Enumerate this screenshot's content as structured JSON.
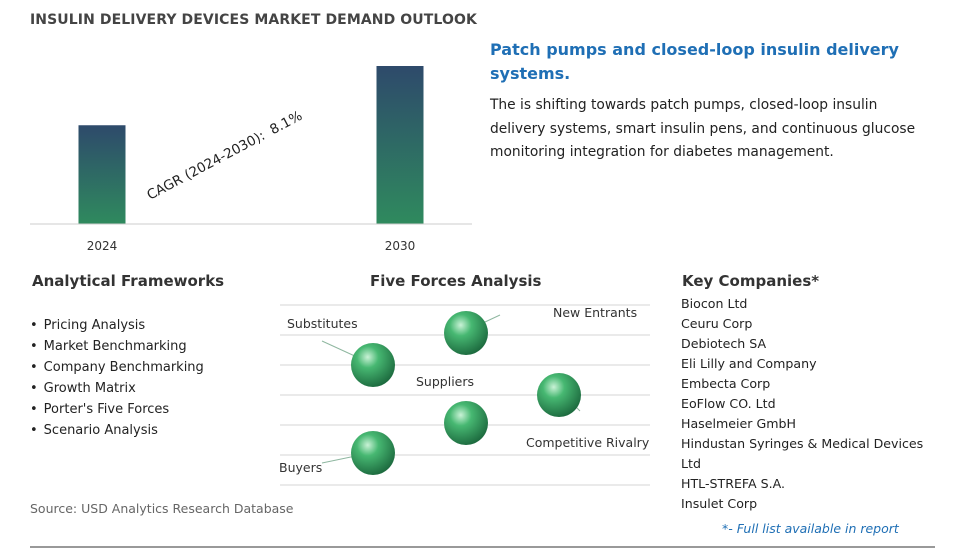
{
  "header": {
    "title": "INSULIN DELIVERY DEVICES MARKET DEMAND OUTLOOK"
  },
  "chart_data": {
    "type": "bar",
    "categories": [
      "2024",
      "2030"
    ],
    "values": [
      1.0,
      1.6
    ],
    "annotation": {
      "label": "CAGR (2024-2030):",
      "value": "8.1%"
    }
  },
  "highlight": {
    "title": "Patch pumps and closed-loop insulin delivery systems.",
    "description": "The is shifting towards patch pumps, closed-loop insulin delivery systems, smart insulin pens, and continuous glucose monitoring integration for diabetes management."
  },
  "analytical_frameworks": {
    "title": "Analytical Frameworks",
    "items": [
      "Pricing Analysis",
      "Market Benchmarking",
      "Company Benchmarking",
      "Growth Matrix",
      "Porter's Five Forces",
      "Scenario Analysis"
    ]
  },
  "five_forces": {
    "title": "Five Forces Analysis",
    "labels": {
      "substitutes": "Substitutes",
      "new_entrants": "New Entrants",
      "suppliers": "Suppliers",
      "competitive_rivalry": "Competitive Rivalry",
      "buyers": "Buyers"
    }
  },
  "key_companies": {
    "title": "Key Companies*",
    "items": [
      "Biocon Ltd",
      "Ceuru Corp",
      "Debiotech SA",
      "Eli Lilly and Company",
      "Embecta Corp",
      "EoFlow CO. Ltd",
      "Haselmeier GmbH",
      "Hindustan Syringes & Medical Devices Ltd",
      "HTL-STREFA S.A.",
      "Insulet Corp"
    ],
    "note": "*- Full list available in report"
  },
  "footer": {
    "source": "Source: USD Analytics Research Database"
  },
  "colors": {
    "bar_top": "#2e4a6b",
    "bar_bottom": "#2f8a5e",
    "accent_blue": "#1f6fb5",
    "sphere": "#2e9a5c"
  }
}
